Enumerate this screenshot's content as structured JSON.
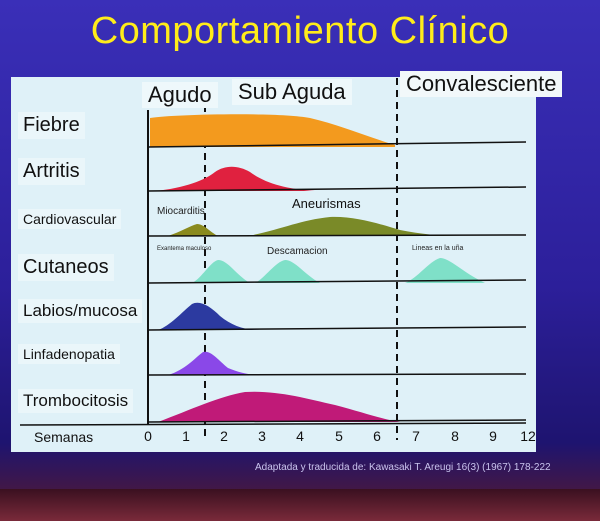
{
  "title": "Comportamiento Clínico",
  "phases": [
    "Agudo",
    "Sub Aguda",
    "Convalesciente"
  ],
  "rows": [
    {
      "label": "Fiebre"
    },
    {
      "label": "Artritis"
    },
    {
      "label": "Cardiovascular"
    },
    {
      "label": "Cutaneos"
    },
    {
      "label": "Labios/mucosa"
    },
    {
      "label": "Linfadenopatia"
    },
    {
      "label": "Trombocitosis"
    }
  ],
  "annotations": {
    "miocarditis": "Miocarditis",
    "aneurismas": "Aneurismas",
    "exantema": "Exantema maculoso",
    "descamacion": "Descamacion",
    "lineas_una": "Lineas en la uña"
  },
  "axis": {
    "label": "Semanas",
    "ticks": [
      "0",
      "1",
      "2",
      "3",
      "4",
      "5",
      "6",
      "7",
      "8",
      "9",
      "12"
    ]
  },
  "source": "Adaptada y traducida de:  Kawasaki T.  Areugi 16(3) (1967) 178-222",
  "colors": {
    "fiebre": "#f39a1e",
    "artritis": "#e0213f",
    "cardio_small": "#8a8a1e",
    "cardio_big": "#7a8a28",
    "cutaneos": "#7fe0c8",
    "labios": "#2c3aa0",
    "linfadenopatia": "#8a48e8",
    "trombocitosis": "#c01a78"
  }
}
